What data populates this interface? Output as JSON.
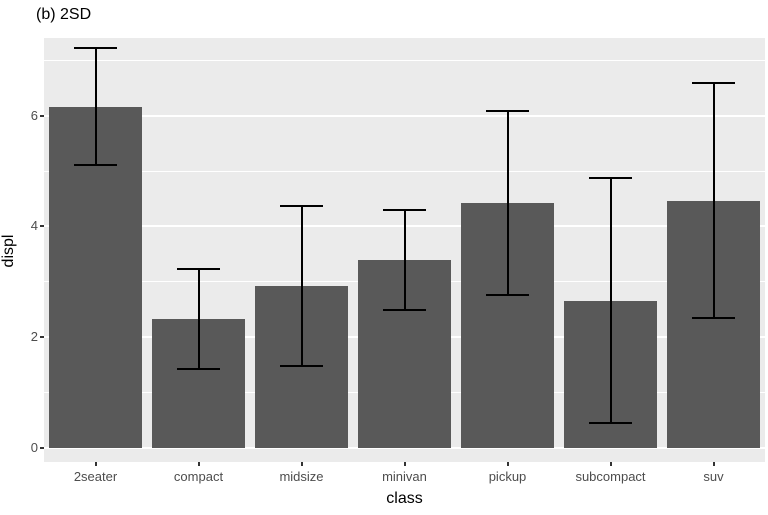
{
  "title": "(b) 2SD",
  "chart_data": {
    "type": "bar",
    "title": "(b) 2SD",
    "xlabel": "class",
    "ylabel": "displ",
    "categories": [
      "2seater",
      "compact",
      "midsize",
      "minivan",
      "pickup",
      "subcompact",
      "suv"
    ],
    "values": [
      6.16,
      2.33,
      2.92,
      3.39,
      4.42,
      2.66,
      4.46
    ],
    "error_low": [
      5.1,
      1.42,
      1.48,
      2.49,
      2.77,
      0.45,
      2.34
    ],
    "error_high": [
      7.22,
      3.24,
      4.36,
      4.3,
      6.08,
      4.87,
      6.58
    ],
    "error_type": "2 standard deviations",
    "yticks": [
      0,
      2,
      4,
      6
    ],
    "ylim": [
      -0.25,
      7.4
    ],
    "grid": true,
    "legend": "none",
    "bar_color": "#595959",
    "panel_bg": "#EBEBEB",
    "grid_color": "#ffffff",
    "error_color": "#000000",
    "tick_label_color": "#4d4d4d"
  }
}
